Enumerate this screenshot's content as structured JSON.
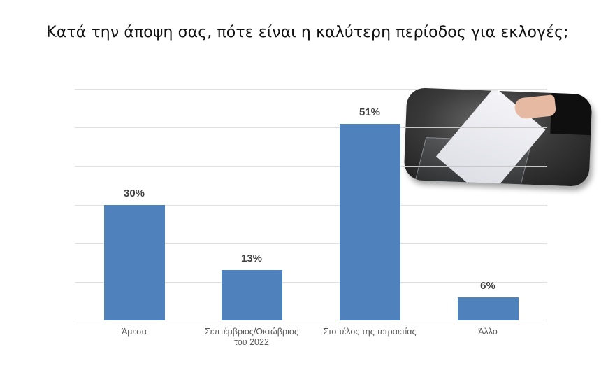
{
  "title": "Κατά την άποψη σας, πότε είναι η καλύτερη περίοδος για εκλογές;",
  "colors": {
    "bar": "#4f81bd",
    "gridline": "#e0e0e0",
    "label": "#404040",
    "axis_text": "#595959"
  },
  "image": {
    "icon": "ballot-box-photo",
    "description": "hand placing ballot into transparent ballot box"
  },
  "chart_data": {
    "type": "bar",
    "title": "Κατά την άποψη σας, πότε είναι η καλύτερη περίοδος για εκλογές;",
    "categories": [
      "Άμεσα",
      "Σεπτέμβριος/Οκτώβριος του 2022",
      "Στο τέλος της τετραετίας",
      "Άλλο"
    ],
    "category_lines": [
      [
        "Άμεσα"
      ],
      [
        "Σεπτέμβριος/Οκτώβριος",
        "του 2022"
      ],
      [
        "Στο τέλος της τετραετίας"
      ],
      [
        "Άλλο"
      ]
    ],
    "values": [
      30,
      13,
      51,
      6
    ],
    "value_labels": [
      "30%",
      "13%",
      "51%",
      "6%"
    ],
    "xlabel": "",
    "ylabel": "",
    "ylim": [
      0,
      60
    ],
    "y_gridlines": [
      0,
      10,
      20,
      30,
      40,
      50,
      60
    ],
    "y_tick_labels_visible": false,
    "grid": true,
    "legend": null
  }
}
